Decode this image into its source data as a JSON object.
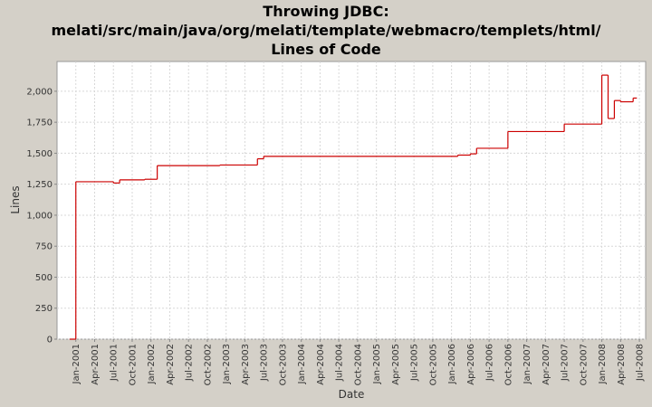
{
  "chart_data": {
    "type": "step-line",
    "title": [
      "Throwing JDBC:",
      "melati/src/main/java/org/melati/template/webmacro/templets/html/",
      "Lines of Code"
    ],
    "x_label": "Date",
    "y_label": "Lines",
    "x": [
      "2000-12",
      "2001-01",
      "2001-07",
      "2001-08",
      "2001-12",
      "2002-02",
      "2002-12",
      "2003-06",
      "2003-07",
      "2006-02",
      "2006-04",
      "2006-05",
      "2006-10",
      "2007-07",
      "2008-01",
      "2008-02",
      "2008-03",
      "2008-04",
      "2008-06"
    ],
    "series": [
      {
        "name": "Lines",
        "color": "#cc0000",
        "values": [
          0,
          1270,
          1260,
          1285,
          1290,
          1400,
          1405,
          1455,
          1475,
          1485,
          1495,
          1540,
          1675,
          1735,
          2130,
          1780,
          1925,
          1915,
          1945
        ]
      }
    ],
    "xlim": [
      "2000-10",
      "2008-08"
    ],
    "xticks": [
      {
        "value": "2001-01",
        "label": "Jan-2001"
      },
      {
        "value": "2001-04",
        "label": "Apr-2001"
      },
      {
        "value": "2001-07",
        "label": "Jul-2001"
      },
      {
        "value": "2001-10",
        "label": "Oct-2001"
      },
      {
        "value": "2002-01",
        "label": "Jan-2002"
      },
      {
        "value": "2002-04",
        "label": "Apr-2002"
      },
      {
        "value": "2002-07",
        "label": "Jul-2002"
      },
      {
        "value": "2002-10",
        "label": "Oct-2002"
      },
      {
        "value": "2003-01",
        "label": "Jan-2003"
      },
      {
        "value": "2003-04",
        "label": "Apr-2003"
      },
      {
        "value": "2003-07",
        "label": "Jul-2003"
      },
      {
        "value": "2003-10",
        "label": "Oct-2003"
      },
      {
        "value": "2004-01",
        "label": "Jan-2004"
      },
      {
        "value": "2004-04",
        "label": "Apr-2004"
      },
      {
        "value": "2004-07",
        "label": "Jul-2004"
      },
      {
        "value": "2004-10",
        "label": "Oct-2004"
      },
      {
        "value": "2005-01",
        "label": "Jan-2005"
      },
      {
        "value": "2005-04",
        "label": "Apr-2005"
      },
      {
        "value": "2005-07",
        "label": "Jul-2005"
      },
      {
        "value": "2005-10",
        "label": "Oct-2005"
      },
      {
        "value": "2006-01",
        "label": "Jan-2006"
      },
      {
        "value": "2006-04",
        "label": "Apr-2006"
      },
      {
        "value": "2006-07",
        "label": "Jul-2006"
      },
      {
        "value": "2006-10",
        "label": "Oct-2006"
      },
      {
        "value": "2007-01",
        "label": "Jan-2007"
      },
      {
        "value": "2007-04",
        "label": "Apr-2007"
      },
      {
        "value": "2007-07",
        "label": "Jul-2007"
      },
      {
        "value": "2007-10",
        "label": "Oct-2007"
      },
      {
        "value": "2008-01",
        "label": "Jan-2008"
      },
      {
        "value": "2008-04",
        "label": "Apr-2008"
      },
      {
        "value": "2008-07",
        "label": "Jul-2008"
      }
    ],
    "ylim": [
      0,
      2240
    ],
    "yticks": [
      0,
      250,
      500,
      750,
      {
        "value": 1000,
        "label": "1,000"
      },
      {
        "value": 1250,
        "label": "1,250"
      },
      {
        "value": 1500,
        "label": "1,500"
      },
      {
        "value": 1750,
        "label": "1,750"
      },
      {
        "value": 2000,
        "label": "2,000"
      }
    ],
    "grid": true
  }
}
